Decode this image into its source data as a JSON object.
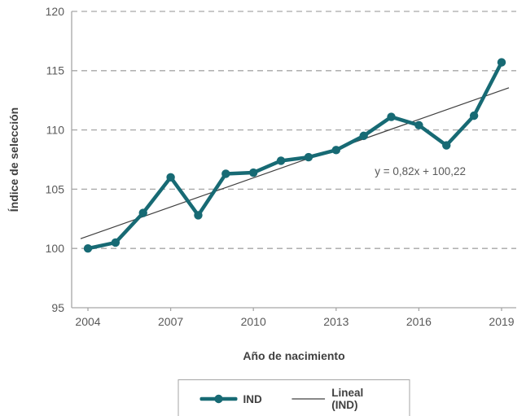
{
  "chart_data": {
    "type": "line",
    "title": "",
    "xlabel": "Año de nacimiento",
    "ylabel": "Índice de selección",
    "x": [
      2004,
      2005,
      2006,
      2007,
      2008,
      2009,
      2010,
      2011,
      2012,
      2013,
      2014,
      2015,
      2016,
      2017,
      2018,
      2019
    ],
    "series": [
      {
        "name": "IND",
        "values": [
          100.0,
          100.5,
          103.0,
          106.0,
          102.8,
          106.3,
          106.4,
          107.4,
          107.7,
          108.3,
          109.5,
          111.1,
          110.4,
          108.7,
          111.2,
          115.7
        ]
      }
    ],
    "trendline": {
      "name": "Lineal (IND)",
      "slope": 0.82,
      "intercept": 100.22,
      "equation_label": "y = 0,82x + 100,22",
      "label_anchor": {
        "x": 2014.4,
        "y": 106.2
      }
    },
    "ylim": [
      95,
      120
    ],
    "yticks": [
      95,
      100,
      105,
      110,
      115,
      120
    ],
    "xticks": [
      2004,
      2007,
      2010,
      2013,
      2016,
      2019
    ],
    "grid": "horizontal-dashed",
    "legend_position": "bottom",
    "colors": {
      "series": "#176a74",
      "trend": "#404040",
      "grid": "#a6a6a6",
      "axis": "#a6a6a6",
      "text": "#595959",
      "title": "#404040"
    }
  },
  "legend": {
    "items": [
      {
        "label": "IND",
        "swatch": "line-marker"
      },
      {
        "label": "Lineal (IND)",
        "swatch": "thin-line"
      }
    ]
  }
}
